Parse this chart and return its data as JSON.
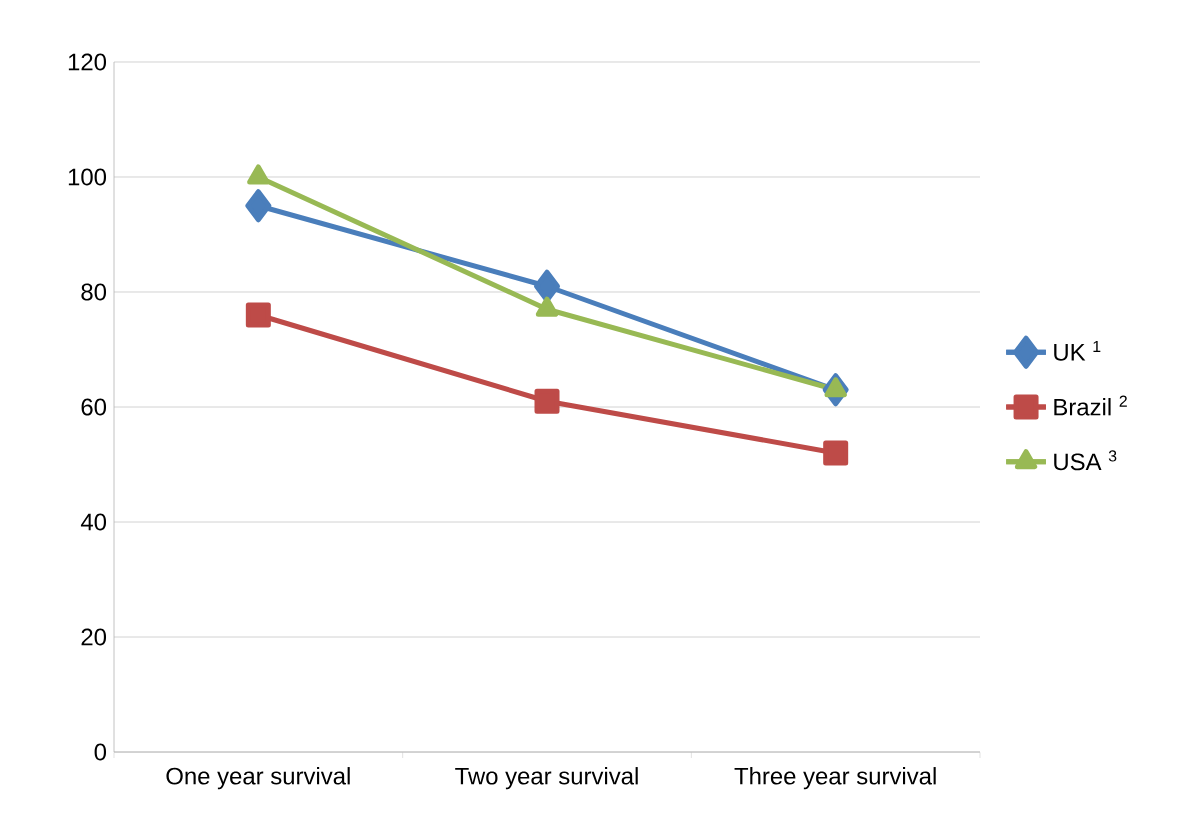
{
  "chart_data": {
    "type": "line",
    "categories": [
      "One year survival",
      "Two year survival",
      "Three year survival"
    ],
    "series": [
      {
        "name": "UK $^{1}$",
        "color": "#4a7ebb",
        "marker": "diamond",
        "values": [
          95,
          81,
          63
        ]
      },
      {
        "name": "Brazil $^{2}$",
        "color": "#be4b48",
        "marker": "square",
        "values": [
          76,
          61,
          52
        ]
      },
      {
        "name": "USA $^{3}$",
        "color": "#98b954",
        "marker": "triangle",
        "values": [
          100,
          77,
          63
        ]
      }
    ],
    "ylim": [
      0,
      120
    ],
    "yticks": [
      0,
      20,
      40,
      60,
      80,
      100,
      120
    ],
    "grid": "y",
    "legend": "right",
    "line_style": "solid"
  }
}
